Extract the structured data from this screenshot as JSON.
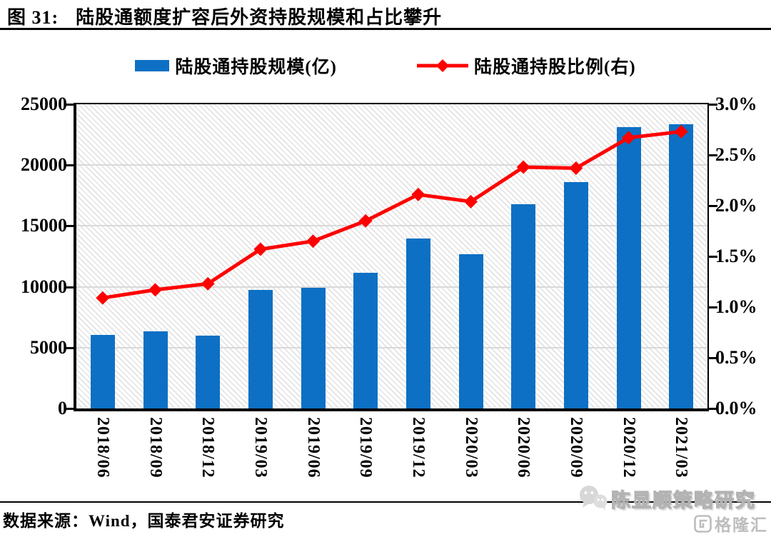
{
  "header": {
    "figure_label": "图 31:",
    "title": "陆股通额度扩容后外资持股规模和占比攀升"
  },
  "chart_data": {
    "type": "combo-bar-line",
    "categories": [
      "2018/06",
      "2018/09",
      "2018/12",
      "2019/03",
      "2019/06",
      "2019/09",
      "2019/12",
      "2020/03",
      "2020/06",
      "2020/09",
      "2020/12",
      "2021/03"
    ],
    "series": [
      {
        "name": "陆股通持股规模(亿)",
        "type": "bar",
        "axis": "left",
        "color": "#0D70C4",
        "values": [
          6050,
          6340,
          5980,
          9760,
          9900,
          11180,
          13940,
          12660,
          16780,
          18620,
          23100,
          23360
        ]
      },
      {
        "name": "陆股通持股比例(右)",
        "type": "line",
        "axis": "right",
        "color": "#FF0000",
        "marker": "diamond",
        "values": [
          1.09,
          1.17,
          1.23,
          1.57,
          1.65,
          1.85,
          2.11,
          2.04,
          2.38,
          2.37,
          2.67,
          2.73
        ]
      }
    ],
    "left_axis": {
      "min": 0,
      "max": 25000,
      "step": 5000,
      "tick_labels": [
        "0",
        "5000",
        "10000",
        "15000",
        "20000",
        "25000"
      ]
    },
    "right_axis": {
      "min": 0.0,
      "max": 3.0,
      "step": 0.5,
      "tick_labels": [
        "0.0%",
        "0.5%",
        "1.0%",
        "1.5%",
        "2.0%",
        "2.5%",
        "3.0%"
      ]
    },
    "grid": "horizontal",
    "legend_position": "top",
    "plot_background": "diagonal-hatch"
  },
  "footer": {
    "source": "数据来源：Wind，国泰君安证券研究",
    "watermark_text": "陈显顺策略研究",
    "logo_text": "格隆汇"
  },
  "colors": {
    "bar": "#0D70C4",
    "line": "#FF0000",
    "gridline": "#D9D9D9",
    "axis": "#000000",
    "watermark_gray": "#BDBDBD"
  }
}
